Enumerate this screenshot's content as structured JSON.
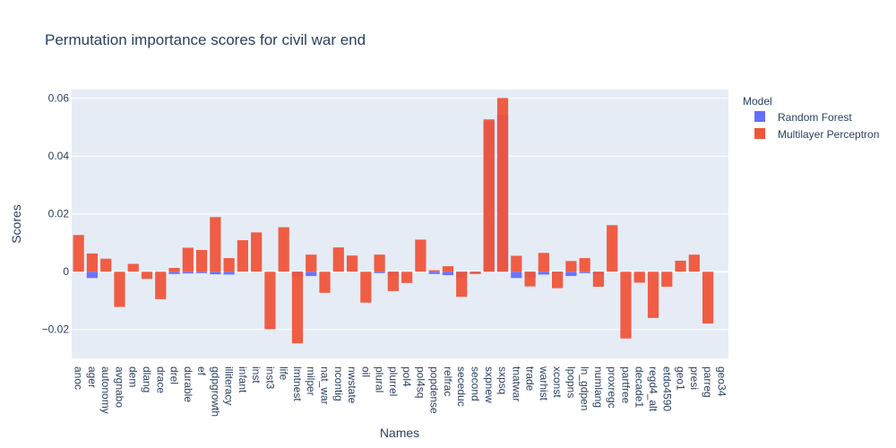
{
  "chart_data": {
    "type": "bar",
    "title": "Permutation importance scores for civil war end",
    "xlabel": "Names",
    "ylabel": "Scores",
    "ylim": [
      -0.03,
      0.063
    ],
    "yticks": [
      -0.02,
      0,
      0.02,
      0.04,
      0.06
    ],
    "ytick_labels": [
      "−0.02",
      "0",
      "0.02",
      "0.04",
      "0.06"
    ],
    "grid": true,
    "barmode": "overlay",
    "legend_title": "Model",
    "legend_position": "top-right",
    "categories": [
      "anoc",
      "ager",
      "autonomy",
      "avgnabo",
      "dem",
      "dlang",
      "drace",
      "drel",
      "durable",
      "ef",
      "gdpgrowth",
      "illiteracy",
      "infant",
      "inst",
      "inst3",
      "life",
      "lmtnest",
      "milper",
      "nat_war",
      "ncontig",
      "nwstate",
      "oil",
      "plural",
      "plurrel",
      "pol4",
      "pol4sq",
      "popdense",
      "relfrac",
      "seceduc",
      "second",
      "sxpnew",
      "sxpsq",
      "tnatwar",
      "trade",
      "warhist",
      "xconst",
      "lpopns",
      "ln_gdpen",
      "numlang",
      "proxregc",
      "partfree",
      "decade1",
      "regd4_alt",
      "etdo4590",
      "geo1",
      "presi",
      "parreg",
      "geo34"
    ],
    "series": [
      {
        "name": "Random Forest",
        "color": "#636efa",
        "values": [
          0,
          -0.0022,
          0,
          0,
          0,
          0,
          0,
          -0.0008,
          -0.0006,
          -0.0005,
          -0.0009,
          -0.001,
          0,
          0,
          0,
          0,
          -0.0015,
          -0.0015,
          0,
          0,
          0,
          0,
          -0.0005,
          -0.0015,
          0,
          0,
          -0.0008,
          -0.0012,
          -0.0022,
          -0.0005,
          0.052,
          0.0542,
          -0.0022,
          -0.002,
          -0.001,
          -0.0005,
          -0.0015,
          -0.0005,
          -0.001,
          0,
          0,
          0,
          0,
          0,
          0,
          0,
          0,
          0
        ]
      },
      {
        "name": "Multilayer Perceptron",
        "color": "#ef553b",
        "values": [
          0.0127,
          0.0063,
          0.0045,
          -0.0122,
          0.0027,
          -0.0025,
          -0.0095,
          0.0013,
          0.0083,
          0.0075,
          0.0189,
          0.0047,
          0.0109,
          0.0136,
          -0.0199,
          0.0154,
          -0.0248,
          0.0059,
          -0.0073,
          0.0084,
          0.0056,
          -0.0107,
          0.0059,
          -0.0067,
          -0.0039,
          0.0111,
          0.0005,
          0.0019,
          -0.0087,
          -0.0008,
          0.0527,
          0.0601,
          0.0055,
          -0.0051,
          0.0065,
          -0.0057,
          0.0037,
          0.0047,
          -0.0052,
          0.0161,
          -0.0231,
          -0.0038,
          -0.016,
          -0.0052,
          0.0038,
          0.0059,
          -0.0179,
          0
        ]
      }
    ]
  }
}
